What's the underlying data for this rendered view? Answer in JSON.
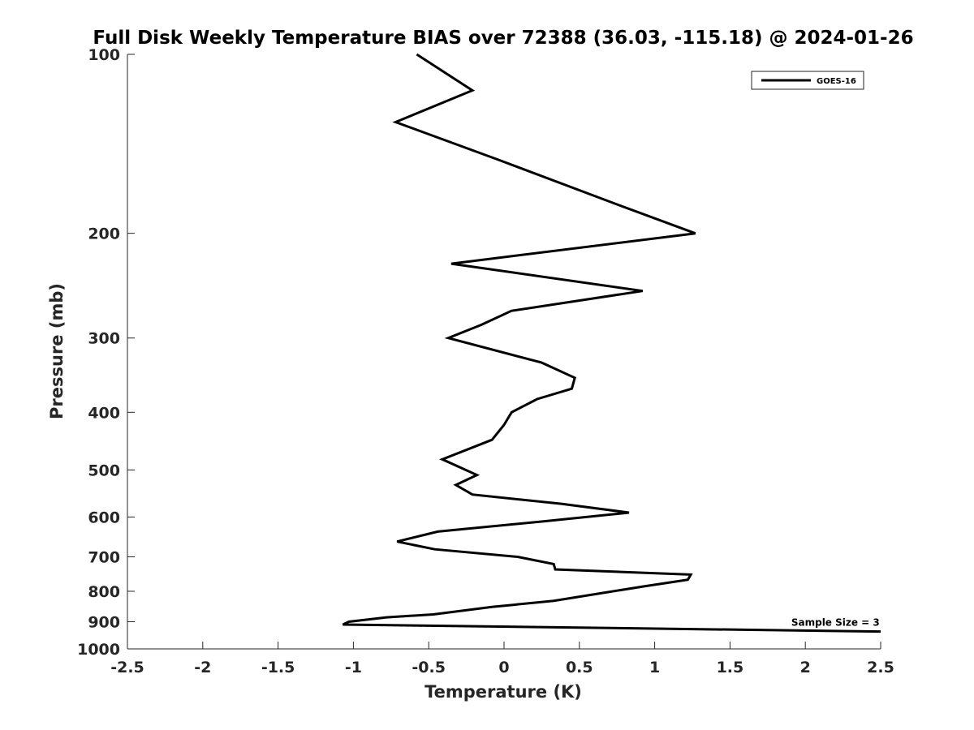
{
  "chart_data": {
    "type": "line",
    "title": "Full Disk Weekly Temperature BIAS over 72388 (36.03, -115.18) @ 2024-01-26",
    "xlabel": "Temperature (K)",
    "ylabel": "Pressure (mb)",
    "xlim": [
      -2.5,
      2.5
    ],
    "ylim": [
      100,
      1000
    ],
    "y_scale": "log",
    "y_reversed": true,
    "x_ticks": [
      -2.5,
      -2,
      -1.5,
      -1,
      -0.5,
      0,
      0.5,
      1,
      1.5,
      2,
      2.5
    ],
    "x_tick_labels": [
      "-2.5",
      "-2",
      "-1.5",
      "-1",
      "-0.5",
      "0",
      "0.5",
      "1",
      "1.5",
      "2",
      "2.5"
    ],
    "y_ticks": [
      100,
      200,
      300,
      400,
      500,
      600,
      700,
      800,
      900,
      1000
    ],
    "y_tick_labels": [
      "100",
      "200",
      "300",
      "400",
      "500",
      "600",
      "700",
      "800",
      "900",
      "1000"
    ],
    "grid": false,
    "legend_position": "top-right",
    "series": [
      {
        "name": "GOES-16",
        "color": "#000000",
        "x": [
          -0.58,
          -0.21,
          -0.72,
          -0.05,
          0.78,
          1.27,
          -0.35,
          0.92,
          0.05,
          -0.15,
          -0.37,
          0.25,
          0.47,
          0.45,
          0.22,
          0.05,
          0.0,
          -0.08,
          -0.41,
          -0.18,
          -0.32,
          -0.21,
          0.38,
          0.83,
          0.27,
          -0.44,
          -0.71,
          -0.46,
          0.09,
          0.33,
          0.34,
          1.24,
          1.22,
          0.93,
          0.66,
          0.33,
          -0.08,
          -0.47,
          -0.78,
          -1.03,
          -1.07,
          2.5
        ],
        "y": [
          100,
          115,
          130,
          150,
          180,
          200,
          225,
          250,
          270,
          285,
          300,
          330,
          350,
          365,
          380,
          400,
          420,
          445,
          480,
          510,
          530,
          550,
          570,
          590,
          610,
          635,
          660,
          680,
          700,
          720,
          735,
          750,
          765,
          785,
          805,
          830,
          850,
          875,
          885,
          900,
          910,
          935
        ]
      }
    ],
    "annotations": [
      {
        "text": "Sample Size = 3",
        "x": 2.2,
        "y": 900
      }
    ]
  }
}
